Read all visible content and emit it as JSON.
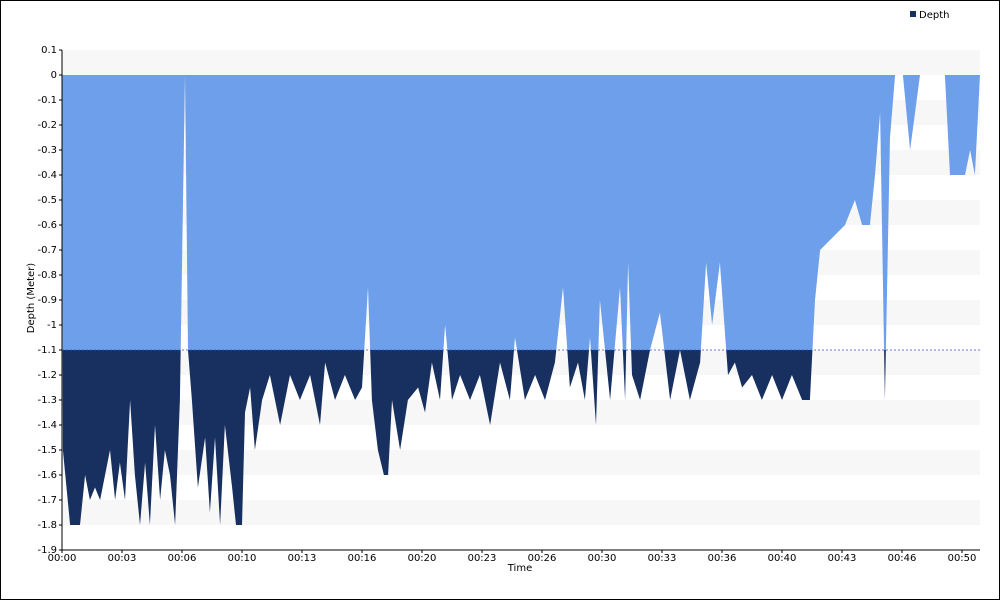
{
  "chart_data": {
    "type": "area",
    "x_label": "Time",
    "y_label": "Depth (Meter)",
    "x": [
      0,
      3,
      27,
      60,
      77,
      93,
      110,
      127,
      160,
      177,
      193,
      210,
      227,
      243,
      260,
      277,
      293,
      310,
      327,
      343,
      360,
      377,
      393,
      410,
      420,
      433,
      453,
      477,
      493,
      510,
      527,
      543,
      567,
      580,
      600,
      610,
      627,
      643,
      667,
      693,
      727,
      760,
      793,
      827,
      860,
      877,
      910,
      943,
      977,
      1000,
      1020,
      1033,
      1053,
      1073,
      1087,
      1100,
      1127,
      1153,
      1187,
      1210,
      1233,
      1260,
      1277,
      1300,
      1327,
      1360,
      1393,
      1427,
      1460,
      1493,
      1510,
      1543,
      1577,
      1610,
      1643,
      1670,
      1693,
      1720,
      1743,
      1760,
      1780,
      1793,
      1827,
      1860,
      1877,
      1887,
      1900,
      1927,
      1960,
      1993,
      2027,
      2060,
      2093,
      2127,
      2147,
      2167,
      2193,
      2220,
      2243,
      2267,
      2300,
      2333,
      2367,
      2400,
      2433,
      2467,
      2493,
      2510,
      2527,
      2610,
      2643,
      2667,
      2693,
      2710,
      2727,
      2743,
      2760,
      2777,
      2803,
      2827,
      2860,
      2943,
      2960,
      3010,
      3027,
      3043,
      3060
    ],
    "series": [
      {
        "name": "Depth",
        "color": "#6e9fea",
        "threshold": -1.1,
        "threshold_color": "#17305f",
        "values": [
          0,
          -1.5,
          -1.8,
          -1.8,
          -1.6,
          -1.7,
          -1.65,
          -1.7,
          -1.5,
          -1.7,
          -1.55,
          -1.7,
          -1.3,
          -1.6,
          -1.8,
          -1.55,
          -1.8,
          -1.4,
          -1.7,
          -1.5,
          -1.6,
          -1.8,
          -1.3,
          0,
          -1.1,
          -1.3,
          -1.65,
          -1.45,
          -1.75,
          -1.45,
          -1.8,
          -1.4,
          -1.65,
          -1.8,
          -1.8,
          -1.35,
          -1.25,
          -1.5,
          -1.3,
          -1.2,
          -1.4,
          -1.2,
          -1.3,
          -1.2,
          -1.4,
          -1.15,
          -1.3,
          -1.2,
          -1.3,
          -1.25,
          -0.85,
          -1.3,
          -1.5,
          -1.6,
          -1.6,
          -1.3,
          -1.5,
          -1.3,
          -1.25,
          -1.35,
          -1.15,
          -1.3,
          -1.0,
          -1.3,
          -1.2,
          -1.3,
          -1.2,
          -1.4,
          -1.15,
          -1.3,
          -1.05,
          -1.3,
          -1.2,
          -1.3,
          -1.15,
          -0.85,
          -1.25,
          -1.15,
          -1.3,
          -1.05,
          -1.4,
          -0.9,
          -1.3,
          -0.85,
          -1.3,
          -0.75,
          -1.2,
          -1.3,
          -1.1,
          -0.95,
          -1.3,
          -1.1,
          -1.3,
          -1.15,
          -0.75,
          -1.0,
          -0.75,
          -1.2,
          -1.15,
          -1.25,
          -1.2,
          -1.3,
          -1.2,
          -1.3,
          -1.2,
          -1.3,
          -1.3,
          -0.9,
          -0.7,
          -0.6,
          -0.5,
          -0.6,
          -0.6,
          -0.4,
          -0.15,
          -1.3,
          -0.25,
          0,
          0,
          -0.3,
          0,
          0,
          -0.4,
          -0.4,
          -0.3,
          -0.4,
          0
        ]
      }
    ],
    "xlim": [
      0,
      3060
    ],
    "xticks": [
      {
        "value": 0,
        "label": "00:00"
      },
      {
        "value": 200,
        "label": "00:03"
      },
      {
        "value": 400,
        "label": "00:06"
      },
      {
        "value": 600,
        "label": "00:10"
      },
      {
        "value": 800,
        "label": "00:13"
      },
      {
        "value": 1000,
        "label": "00:16"
      },
      {
        "value": 1200,
        "label": "00:20"
      },
      {
        "value": 1400,
        "label": "00:23"
      },
      {
        "value": 1600,
        "label": "00:26"
      },
      {
        "value": 1800,
        "label": "00:30"
      },
      {
        "value": 2000,
        "label": "00:33"
      },
      {
        "value": 2200,
        "label": "00:36"
      },
      {
        "value": 2400,
        "label": "00:40"
      },
      {
        "value": 2600,
        "label": "00:43"
      },
      {
        "value": 2800,
        "label": "00:46"
      },
      {
        "value": 3000,
        "label": "00:50"
      }
    ],
    "ylim": [
      -1.9,
      0.1
    ],
    "yticks": [
      0.1,
      0,
      -0.1,
      -0.2,
      -0.3,
      -0.4,
      -0.5,
      -0.6,
      -0.7,
      -0.8,
      -0.9,
      -1,
      -1.1,
      -1.2,
      -1.3,
      -1.4,
      -1.5,
      -1.6,
      -1.7,
      -1.8,
      -1.9
    ],
    "grid_bands": true,
    "legend": "top-right"
  }
}
